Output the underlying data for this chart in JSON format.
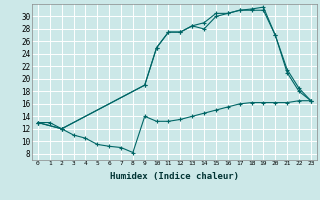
{
  "xlabel": "Humidex (Indice chaleur)",
  "bg_color": "#cce8e8",
  "line_color": "#006666",
  "xlim": [
    -0.5,
    23.5
  ],
  "ylim": [
    7,
    32
  ],
  "xticks": [
    0,
    1,
    2,
    3,
    4,
    5,
    6,
    7,
    8,
    9,
    10,
    11,
    12,
    13,
    14,
    15,
    16,
    17,
    18,
    19,
    20,
    21,
    22,
    23
  ],
  "yticks": [
    8,
    10,
    12,
    14,
    16,
    18,
    20,
    22,
    24,
    26,
    28,
    30
  ],
  "line1_x": [
    0,
    1,
    2,
    3,
    4,
    5,
    6,
    7,
    8,
    9,
    10,
    11,
    12,
    13,
    14,
    15,
    16,
    17,
    18,
    19,
    20,
    21,
    22,
    23
  ],
  "line1_y": [
    13,
    13,
    12,
    11,
    10.5,
    9.5,
    9.2,
    9.0,
    8.2,
    14.0,
    13.2,
    13.2,
    13.5,
    14.0,
    14.5,
    15.0,
    15.5,
    16.0,
    16.2,
    16.2,
    16.2,
    16.2,
    16.5,
    16.5
  ],
  "line2_x": [
    0,
    2,
    9,
    10,
    11,
    12,
    13,
    14,
    15,
    16,
    17,
    18,
    19,
    20,
    21,
    22,
    23
  ],
  "line2_y": [
    13,
    12,
    19,
    25.0,
    27.5,
    27.5,
    28.5,
    29.0,
    30.5,
    30.5,
    31.0,
    31.2,
    31.5,
    27.0,
    21.0,
    18.0,
    16.5
  ],
  "line3_x": [
    0,
    2,
    9,
    10,
    11,
    12,
    13,
    14,
    15,
    16,
    17,
    18,
    19,
    20,
    21,
    22,
    23
  ],
  "line3_y": [
    13,
    12,
    19,
    25.0,
    27.5,
    27.5,
    28.5,
    28.0,
    30.0,
    30.5,
    31.0,
    31.0,
    31.0,
    27.0,
    21.5,
    18.5,
    16.5
  ]
}
